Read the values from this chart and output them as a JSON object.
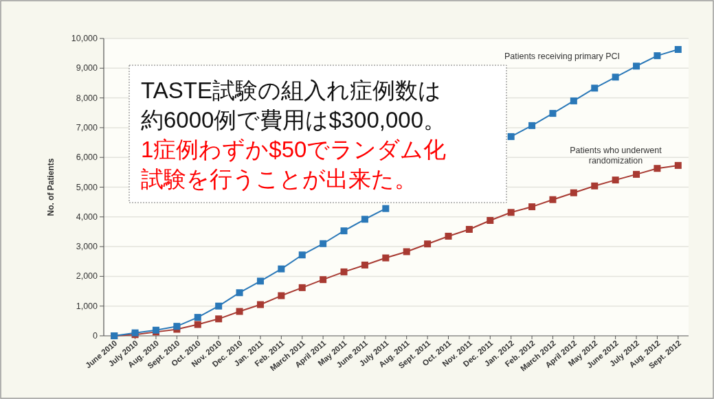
{
  "chart_data": {
    "type": "line",
    "ylabel": "No. of Patients",
    "categories": [
      "June 2010",
      "July 2010",
      "Aug. 2010",
      "Sept. 2010",
      "Oct. 2010",
      "Nov. 2010",
      "Dec. 2010",
      "Jan. 2011",
      "Feb. 2011",
      "March 2011",
      "April 2011",
      "May 2011",
      "June 2011",
      "July 2011",
      "Aug. 2011",
      "Sept. 2011",
      "Oct. 2011",
      "Nov. 2011",
      "Dec. 2011",
      "Jan. 2012",
      "Feb. 2012",
      "March 2012",
      "April 2012",
      "May 2012",
      "June 2012",
      "July 2012",
      "Aug. 2012",
      "Sept. 2012"
    ],
    "series": [
      {
        "name": "Patients receiving primary PCI",
        "color": "#2a78b8",
        "values": [
          0,
          100,
          190,
          320,
          620,
          1000,
          1450,
          1840,
          2250,
          2720,
          3100,
          3530,
          3920,
          4280,
          null,
          null,
          null,
          null,
          null,
          6700,
          7070,
          7480,
          7900,
          8330,
          8700,
          9070,
          9420,
          9630
        ]
      },
      {
        "name": "Patients who underwent randomization",
        "color": "#a83a32",
        "values": [
          0,
          40,
          130,
          220,
          380,
          570,
          820,
          1050,
          1350,
          1620,
          1890,
          2150,
          2380,
          2620,
          2830,
          3090,
          3350,
          3580,
          3880,
          4150,
          4340,
          4580,
          4810,
          5040,
          5240,
          5430,
          5630,
          5730
        ]
      }
    ],
    "ylim": [
      0,
      10000
    ],
    "yticks": [
      0,
      {
        "value": 1000,
        "label": "1,000"
      },
      {
        "value": 2000,
        "label": "2,000"
      },
      {
        "value": 3000,
        "label": "3,000"
      },
      {
        "value": 4000,
        "label": "4,000"
      },
      {
        "value": 5000,
        "label": "5,000"
      },
      {
        "value": 6000,
        "label": "6,000"
      },
      {
        "value": 7000,
        "label": "7,000"
      },
      {
        "value": 8000,
        "label": "8,000"
      },
      {
        "value": 9000,
        "label": "9,000"
      },
      {
        "value": 10000,
        "label": "10,000"
      }
    ],
    "grid": "y",
    "marker": "square",
    "line_style": "solid",
    "legend": false,
    "annotations": [
      "TASTE試験の組入れ症例数は",
      "約6000例で費用は$300,000。",
      "1症例わずか$50でランダム化",
      "試験を行うことが出来た。"
    ]
  }
}
